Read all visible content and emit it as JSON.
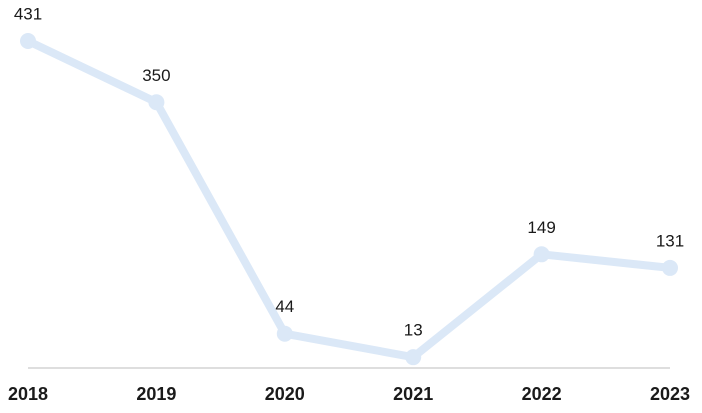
{
  "chart_data": {
    "type": "line",
    "categories": [
      "2018",
      "2019",
      "2020",
      "2021",
      "2022",
      "2023"
    ],
    "values": [
      431,
      350,
      44,
      13,
      149,
      131
    ],
    "color": "#dbe8f7"
  }
}
